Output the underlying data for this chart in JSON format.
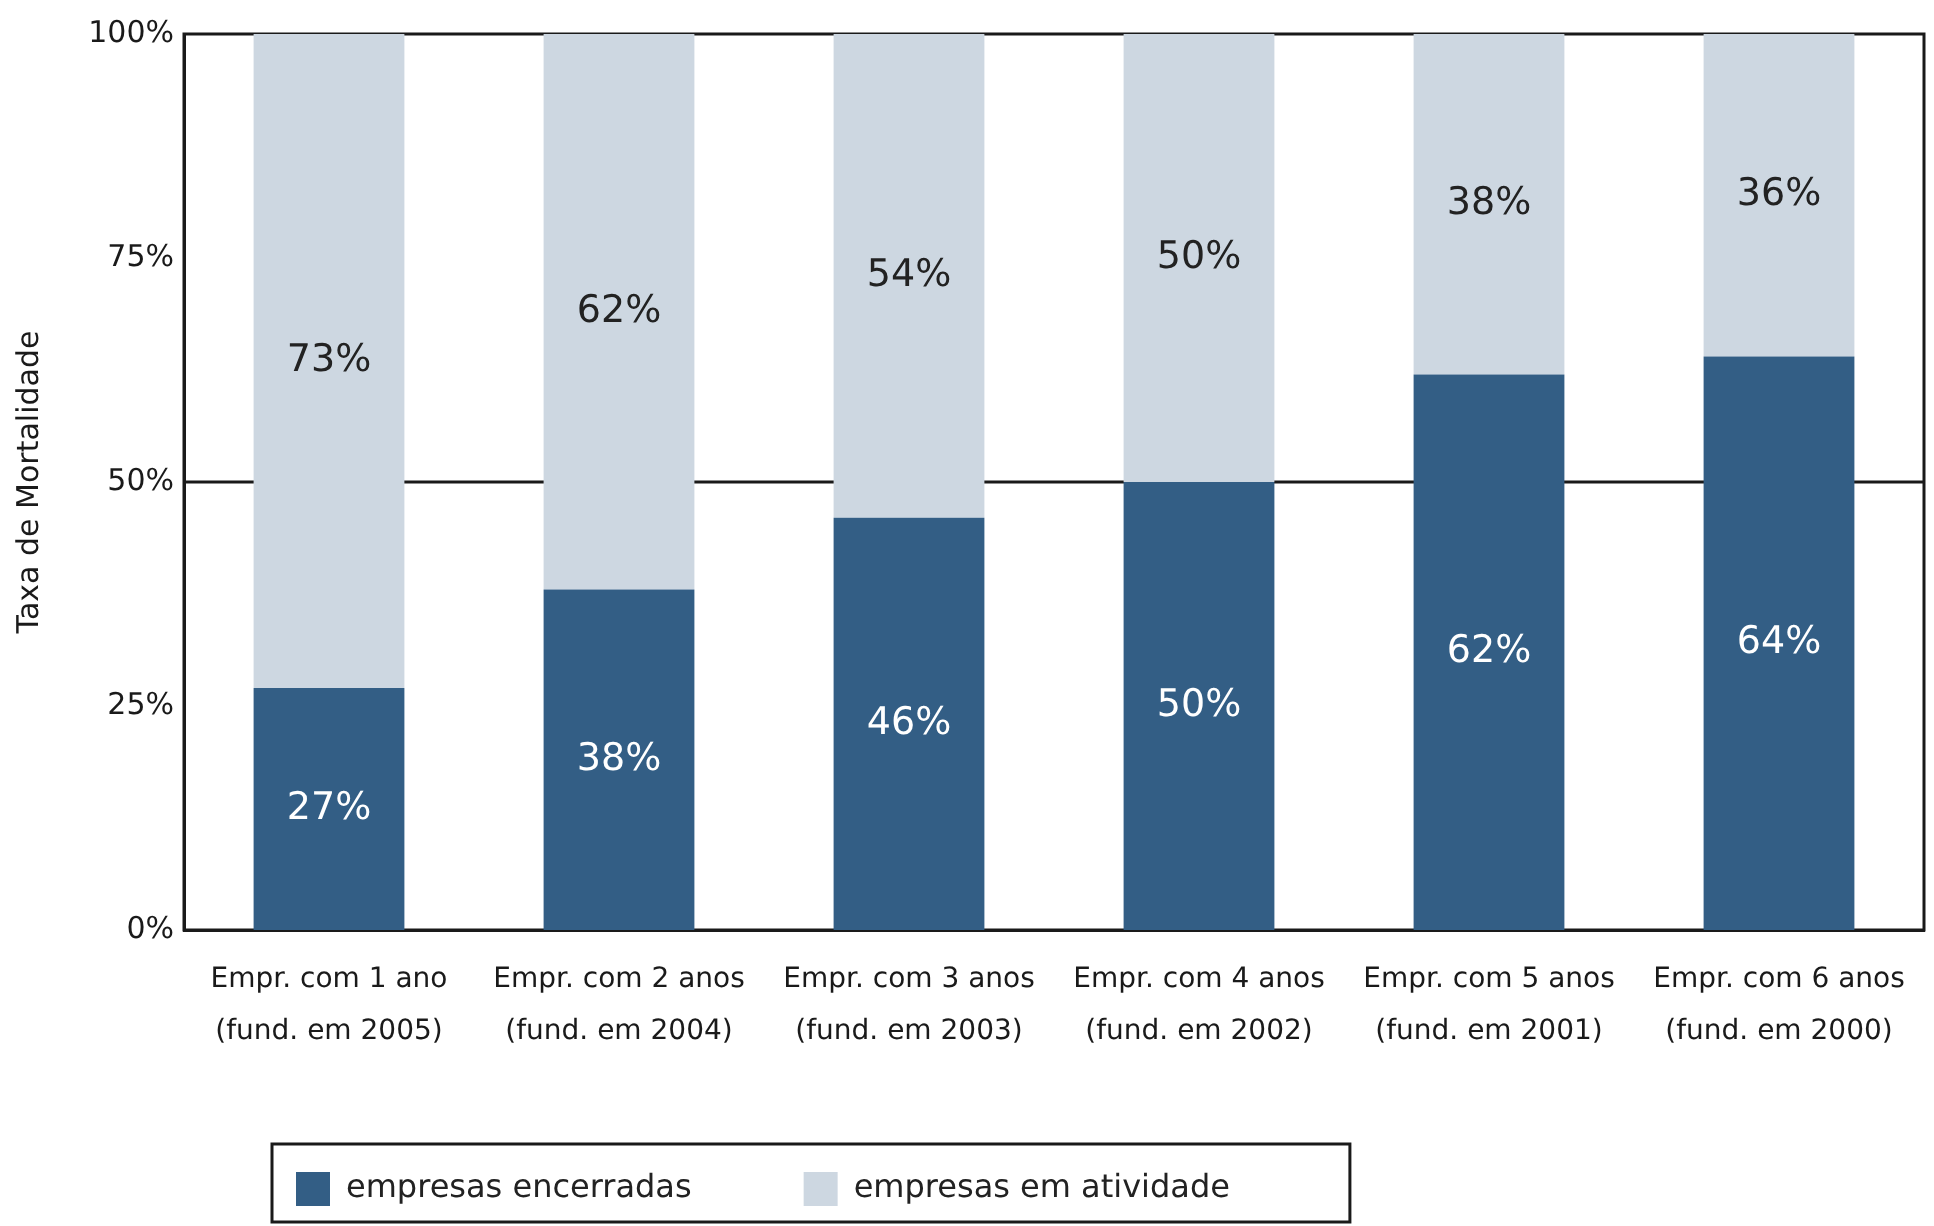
{
  "chart_data": {
    "type": "bar",
    "ylabel": "Taxa de Mortalidade",
    "categories": [
      "Empr. com 1 ano\n(fund. em 2005)",
      "Empr. com 2 anos\n(fund. em 2004)",
      "Empr. com 3 anos\n(fund. em 2003)",
      "Empr. com 4 anos\n(fund. em 2002)",
      "Empr. com 5 anos\n(fund. em 2001)",
      "Empr. com 6 anos\n(fund. em 2000)"
    ],
    "stacked": true,
    "series": [
      {
        "name": "empresas encerradas",
        "color": "#335e85",
        "values": [
          27,
          38,
          46,
          50,
          62,
          64
        ],
        "value_labels": [
          "27%",
          "38%",
          "46%",
          "50%",
          "62%",
          "64%"
        ]
      },
      {
        "name": "empresas em atividade",
        "color": "#cdd7e1",
        "values": [
          73,
          62,
          54,
          50,
          38,
          36
        ],
        "value_labels": [
          "73%",
          "62%",
          "54%",
          "50%",
          "38%",
          "36%"
        ]
      }
    ],
    "ylim": [
      0,
      100
    ],
    "yticks": [
      {
        "value": 0,
        "label": "0%"
      },
      {
        "value": 25,
        "label": "25%"
      },
      {
        "value": 50,
        "label": "50%"
      },
      {
        "value": 75,
        "label": "75%"
      },
      {
        "value": 100,
        "label": "100%"
      }
    ],
    "ref_lines": [
      {
        "axis": "y",
        "value": 50,
        "color": "#1a1a1a"
      }
    ],
    "legend": "bottom"
  }
}
